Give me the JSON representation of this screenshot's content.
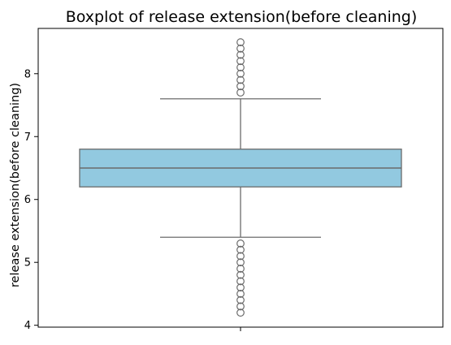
{
  "chart_data": {
    "type": "boxplot",
    "title": "Boxplot of release extension(before cleaning)",
    "xlabel": "",
    "ylabel": "release extension(before cleaning)",
    "ylim": [
      3.97,
      8.72
    ],
    "yticks": [
      4,
      5,
      6,
      7,
      8
    ],
    "grid": false,
    "legend": "none",
    "box": {
      "whisker_low": 5.4,
      "q1": 6.2,
      "median": 6.5,
      "q3": 6.8,
      "whisker_high": 7.6
    },
    "outliers_high": [
      7.7,
      7.8,
      7.9,
      8.0,
      8.1,
      8.2,
      8.3,
      8.4,
      8.5
    ],
    "outliers_low": [
      4.2,
      4.3,
      4.4,
      4.5,
      4.6,
      4.7,
      4.8,
      4.9,
      5.0,
      5.1,
      5.2,
      5.3
    ],
    "colors": {
      "box_fill": "#92c9e0",
      "line": "#6b6b6b",
      "axis": "#000000"
    }
  }
}
